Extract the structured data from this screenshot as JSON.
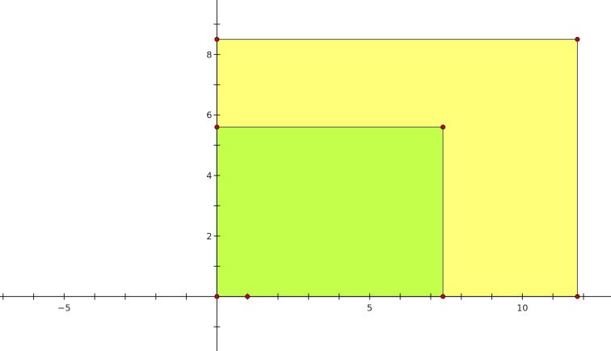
{
  "canvas": {
    "background": "#ffffff",
    "axis_color": "#222222"
  },
  "axes": {
    "x_range": [
      -7.1,
      12.9
    ],
    "y_range": [
      -1.8,
      9.8
    ],
    "x_tick_labels": [
      {
        "value": -5,
        "text": "−5"
      },
      {
        "value": 5,
        "text": "5"
      },
      {
        "value": 10,
        "text": "10"
      }
    ],
    "y_tick_labels": [
      {
        "value": 2,
        "text": "2"
      },
      {
        "value": 4,
        "text": "4"
      },
      {
        "value": 6,
        "text": "6"
      },
      {
        "value": 8,
        "text": "8"
      }
    ],
    "x_minor_tick_step": 1,
    "y_minor_tick_step": 1
  },
  "rectangles": [
    {
      "name": "large-rectangle",
      "corners": [
        [
          0,
          0
        ],
        [
          11.8,
          0
        ],
        [
          11.8,
          8.5
        ],
        [
          0,
          8.5
        ]
      ],
      "fill": "#ffff7a",
      "stroke": "#555555"
    },
    {
      "name": "small-rectangle",
      "corners": [
        [
          0,
          0
        ],
        [
          7.4,
          0
        ],
        [
          7.4,
          5.6
        ],
        [
          0,
          5.6
        ]
      ],
      "fill": "#c4ff4b",
      "stroke": "#555555"
    }
  ],
  "points": [
    {
      "x": 0,
      "y": 0
    },
    {
      "x": 1,
      "y": 0
    },
    {
      "x": 7.4,
      "y": 0
    },
    {
      "x": 11.8,
      "y": 0
    },
    {
      "x": 0,
      "y": 5.6
    },
    {
      "x": 7.4,
      "y": 5.6
    },
    {
      "x": 0,
      "y": 8.5
    },
    {
      "x": 11.8,
      "y": 8.5
    }
  ],
  "point_style": {
    "fill": "#aa1111",
    "stroke": "#440000"
  }
}
